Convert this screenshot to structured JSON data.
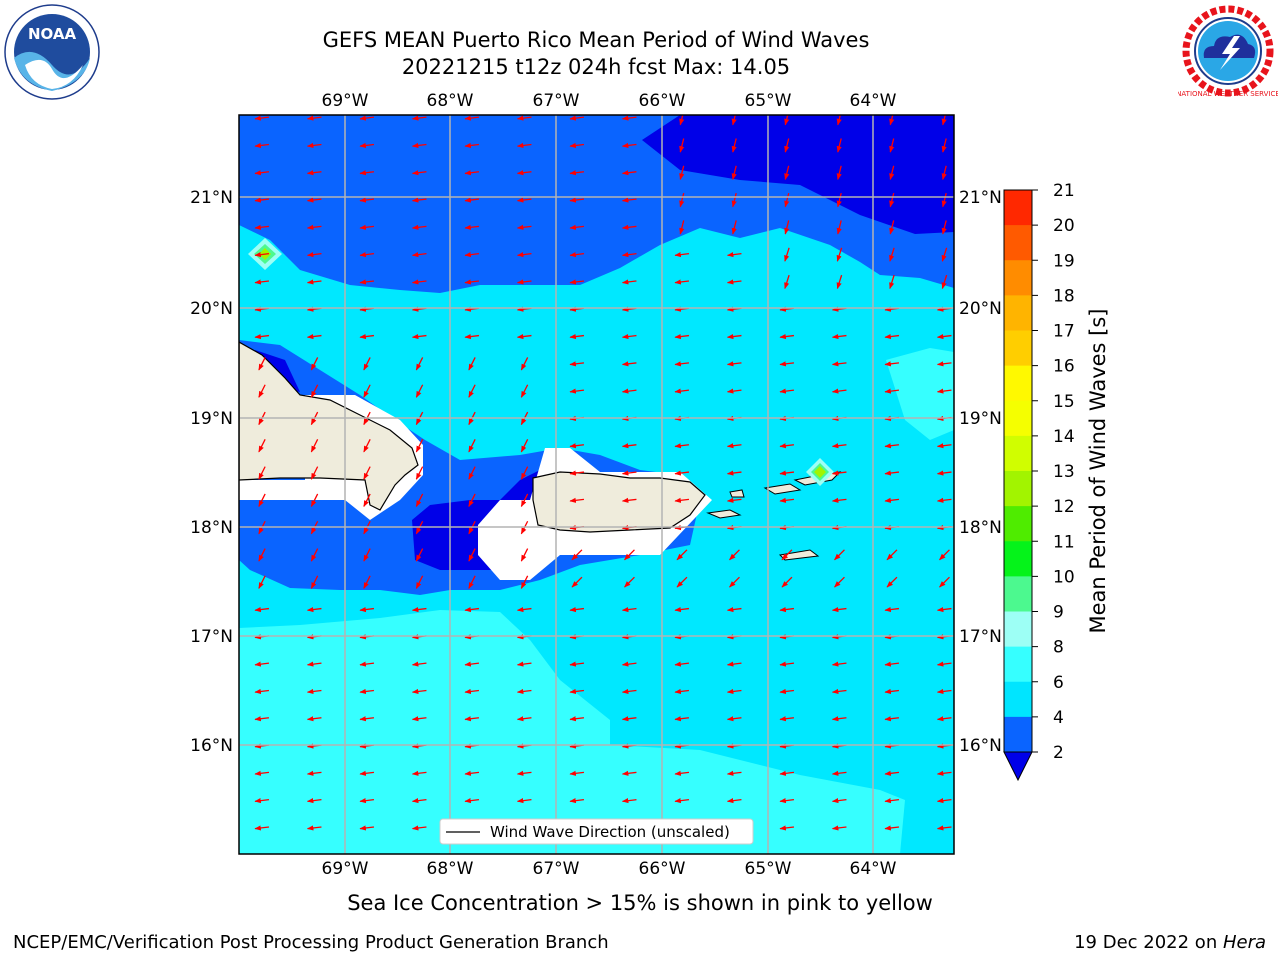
{
  "title": {
    "line1": "GEFS MEAN Puerto Rico Mean Period of Wind Waves",
    "line2": "20221215 t12z 024h fcst   Max: 14.05"
  },
  "map": {
    "lon_labels": [
      "69°W",
      "68°W",
      "67°W",
      "66°W",
      "65°W",
      "64°W"
    ],
    "lat_labels": [
      "21°N",
      "20°N",
      "19°N",
      "18°N",
      "17°N",
      "16°N"
    ],
    "legend": "Wind Wave Direction (unscaled)",
    "land_color": "#efecdc",
    "arrow_color": "#ff0000"
  },
  "colorbar": {
    "title": "Mean Period of Wind Waves [s]",
    "ticks": [
      "2",
      "4",
      "6",
      "8",
      "9",
      "10",
      "11",
      "12",
      "13",
      "14",
      "15",
      "16",
      "17",
      "18",
      "19",
      "20",
      "21"
    ],
    "colors": [
      "#0a64ff",
      "#00e5ff",
      "#36ffff",
      "#9dfff5",
      "#4cf98f",
      "#05f31a",
      "#4fec00",
      "#a2f400",
      "#d0fe00",
      "#f5ff00",
      "#fff900",
      "#ffce00",
      "#ffb400",
      "#ff8c00",
      "#ff5a00",
      "#ff2800"
    ],
    "under_color": "#0000e8",
    "over_color": "#ff0000"
  },
  "note": "Sea Ice Concentration > 15% is shown in pink to yellow",
  "footer": {
    "left": "NCEP/EMC/Verification Post Processing Product Generation Branch",
    "right_prefix": "19 Dec 2022 on ",
    "right_host": "Hera"
  },
  "logos": {
    "noaa_text": "NOAA",
    "nws_text": "NATIONAL WEATHER SERVICE"
  }
}
